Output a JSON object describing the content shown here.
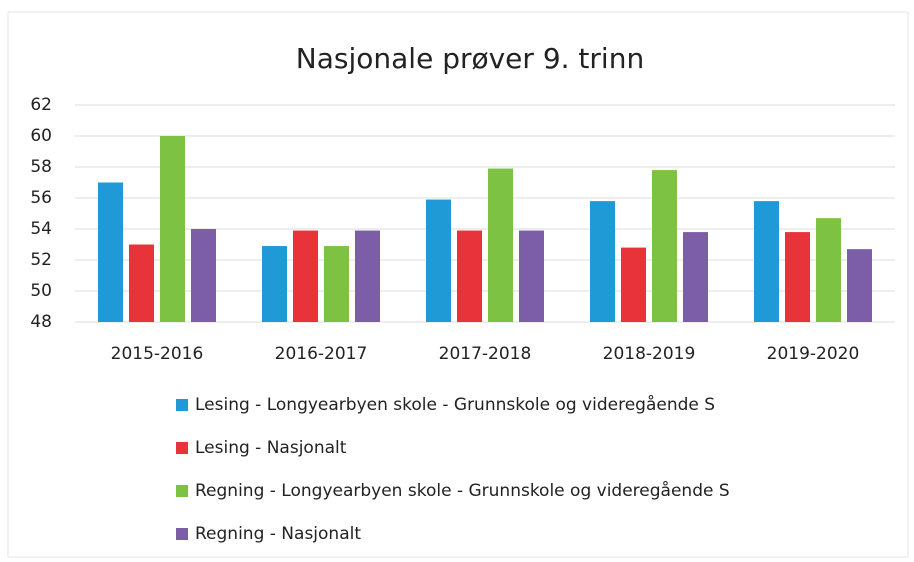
{
  "chart_data": {
    "type": "bar",
    "title": "Nasjonale prøver 9. trinn",
    "categories": [
      "2015-2016",
      "2016-2017",
      "2017-2018",
      "2018-2019",
      "2019-2020"
    ],
    "series": [
      {
        "name": "Lesing - Longyearbyen skole - Grunnskole og videregående S",
        "color": "#1f9ad6",
        "values": [
          57,
          52.9,
          55.9,
          55.8,
          55.8
        ]
      },
      {
        "name": "Lesing - Nasjonalt",
        "color": "#e8333a",
        "values": [
          53,
          53.9,
          53.9,
          52.8,
          53.8
        ]
      },
      {
        "name": "Regning - Longyearbyen skole - Grunnskole og videregående S",
        "color": "#7dc242",
        "values": [
          60,
          52.9,
          57.9,
          57.8,
          54.7
        ]
      },
      {
        "name": "Regning - Nasjonalt",
        "color": "#7b5ea7",
        "values": [
          54,
          53.9,
          53.9,
          53.8,
          52.7
        ]
      }
    ],
    "ylim": [
      48,
      62
    ],
    "yticks": [
      48,
      50,
      52,
      54,
      56,
      58,
      60,
      62
    ],
    "grid": true,
    "legend": "bottom"
  }
}
